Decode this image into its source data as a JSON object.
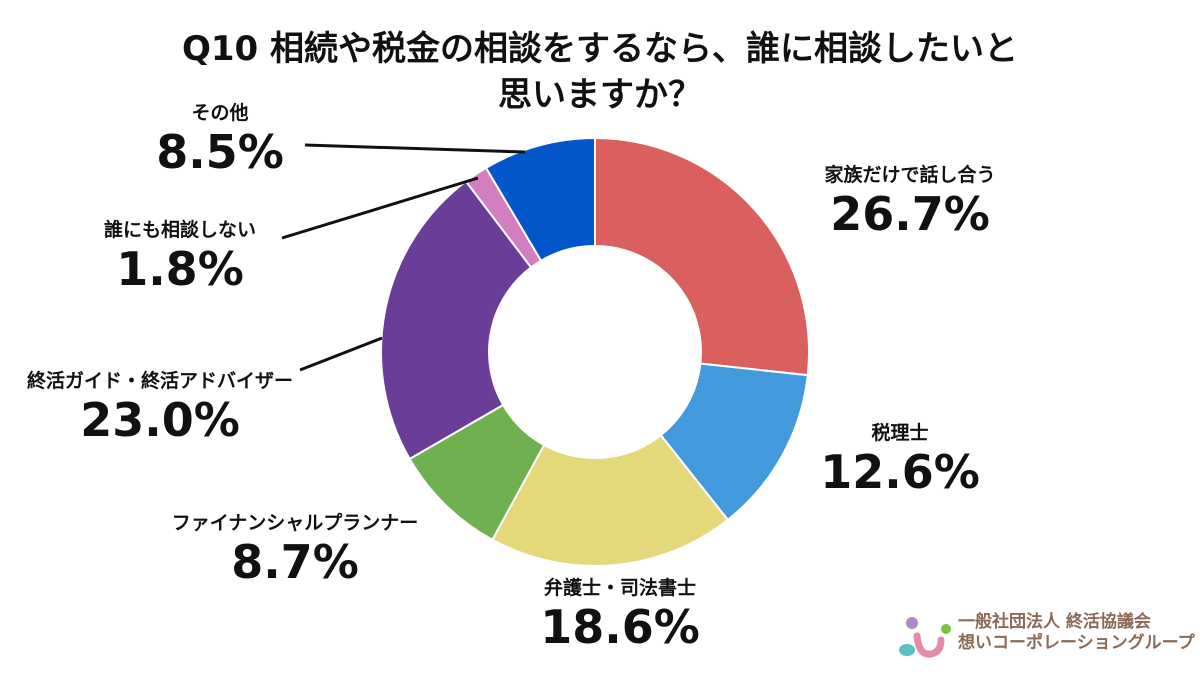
{
  "chart_data": {
    "type": "pie",
    "title": "Q10 相続や税金の相談をするなら、誰に相談したいと思いますか？",
    "title_lines": [
      "Q10 相続や税金の相談をするなら、誰に相談したいと",
      "思いますか？"
    ],
    "donut": true,
    "slices": [
      {
        "label": "家族だけで話し合う",
        "value": 26.7,
        "value_label": "26.7%",
        "color": "#d9605e"
      },
      {
        "label": "税理士",
        "value": 12.6,
        "value_label": "12.6%",
        "color": "#4299dc"
      },
      {
        "label": "弁護士・司法書士",
        "value": 18.6,
        "value_label": "18.6%",
        "color": "#e3d87a"
      },
      {
        "label": "ファイナンシャルプランナー",
        "value": 8.7,
        "value_label": "8.7%",
        "color": "#6fb050"
      },
      {
        "label": "終活ガイド・終活アドバイザー",
        "value": 23.0,
        "value_label": "23.0%",
        "color": "#6a3d98"
      },
      {
        "label": "誰にも相談しない",
        "value": 1.8,
        "value_label": "1.8%",
        "color": "#d27ec0"
      },
      {
        "label": "その他",
        "value": 8.5,
        "value_label": "8.5%",
        "color": "#0356c9"
      }
    ]
  },
  "logo": {
    "line1": "一般社団法人 終活協議会",
    "line2": "想いコーポレーショングループ"
  }
}
